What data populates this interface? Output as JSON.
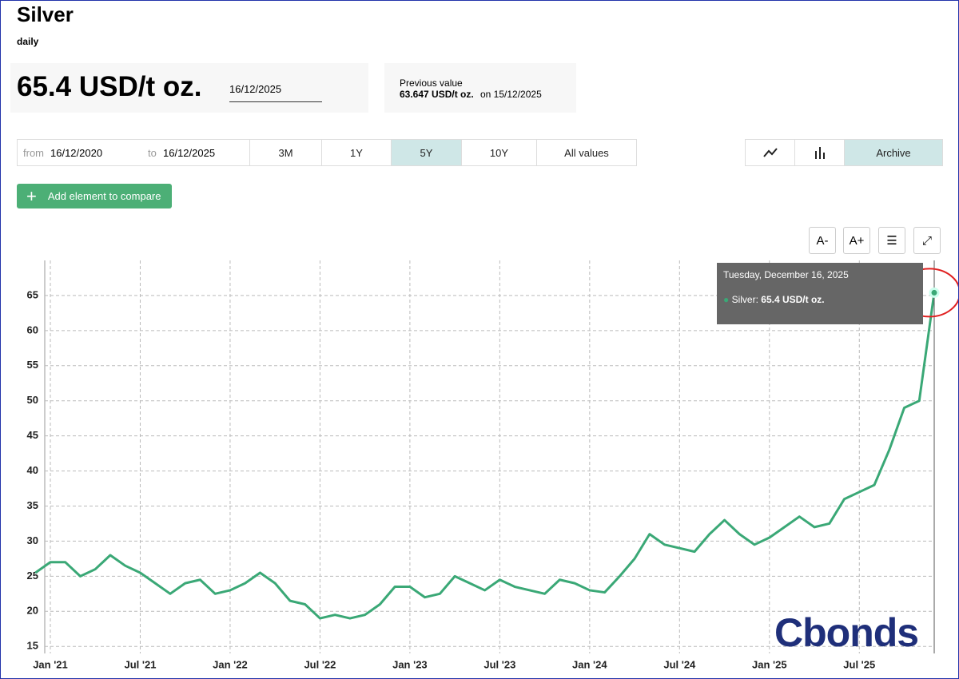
{
  "header": {
    "title": "Silver",
    "frequency": "daily",
    "price": "65.4 USD/t oz.",
    "date": "16/12/2025",
    "previous_label": "Previous value",
    "previous_value": "63.647 USD/t oz.",
    "previous_date": "on 15/12/2025"
  },
  "controls": {
    "from_label": "from",
    "from_date": "16/12/2020",
    "to_label": "to",
    "to_date": "16/12/2025",
    "periods": [
      "3M",
      "1Y",
      "5Y",
      "10Y",
      "All values"
    ],
    "archive": "Archive",
    "compare": "Add element to compare",
    "font_down": "A-",
    "font_up": "A+"
  },
  "tooltip": {
    "date": "Tuesday, December 16, 2025",
    "label": "Silver:",
    "value": "65.4 USD/t oz."
  },
  "logo": "Cbonds",
  "chart_data": {
    "type": "line",
    "x": [
      "2020-12",
      "2021-01",
      "2021-02",
      "2021-03",
      "2021-04",
      "2021-05",
      "2021-06",
      "2021-07",
      "2021-08",
      "2021-09",
      "2021-10",
      "2021-11",
      "2021-12",
      "2022-01",
      "2022-02",
      "2022-03",
      "2022-04",
      "2022-05",
      "2022-06",
      "2022-07",
      "2022-08",
      "2022-09",
      "2022-10",
      "2022-11",
      "2022-12",
      "2023-01",
      "2023-02",
      "2023-03",
      "2023-04",
      "2023-05",
      "2023-06",
      "2023-07",
      "2023-08",
      "2023-09",
      "2023-10",
      "2023-11",
      "2023-12",
      "2024-01",
      "2024-02",
      "2024-03",
      "2024-04",
      "2024-05",
      "2024-06",
      "2024-07",
      "2024-08",
      "2024-09",
      "2024-10",
      "2024-11",
      "2024-12",
      "2025-01",
      "2025-02",
      "2025-03",
      "2025-04",
      "2025-05",
      "2025-06",
      "2025-07",
      "2025-08",
      "2025-09",
      "2025-10",
      "2025-11",
      "2025-12"
    ],
    "series": [
      {
        "name": "Silver",
        "color": "#3aa876",
        "values": [
          25.5,
          27,
          27,
          25,
          26,
          28,
          26.5,
          25.5,
          24,
          22.5,
          24,
          24.5,
          22.5,
          23,
          24,
          25.5,
          24,
          21.5,
          21,
          19,
          19.5,
          19,
          19.5,
          21,
          23.5,
          23.5,
          22,
          22.5,
          25,
          24,
          23,
          24.5,
          23.5,
          23,
          22.5,
          24.5,
          24,
          23,
          22.7,
          25,
          27.5,
          31,
          29.5,
          29,
          28.5,
          31,
          33,
          31,
          29.5,
          30.5,
          32,
          33.5,
          32,
          32.5,
          36,
          37,
          38,
          43,
          49,
          50,
          65.4
        ]
      }
    ],
    "xticks": [
      {
        "value": "2021-01",
        "label": "Jan '21"
      },
      {
        "value": "2021-07",
        "label": "Jul '21"
      },
      {
        "value": "2022-01",
        "label": "Jan '22"
      },
      {
        "value": "2022-07",
        "label": "Jul '22"
      },
      {
        "value": "2023-01",
        "label": "Jan '23"
      },
      {
        "value": "2023-07",
        "label": "Jul '23"
      },
      {
        "value": "2024-01",
        "label": "Jan '24"
      },
      {
        "value": "2024-07",
        "label": "Jul '24"
      },
      {
        "value": "2025-01",
        "label": "Jan '25"
      },
      {
        "value": "2025-07",
        "label": "Jul '25"
      }
    ],
    "ylim": [
      14,
      70
    ],
    "yticks": [
      15,
      20,
      25,
      30,
      35,
      40,
      45,
      50,
      55,
      60,
      65
    ],
    "grid": true
  }
}
